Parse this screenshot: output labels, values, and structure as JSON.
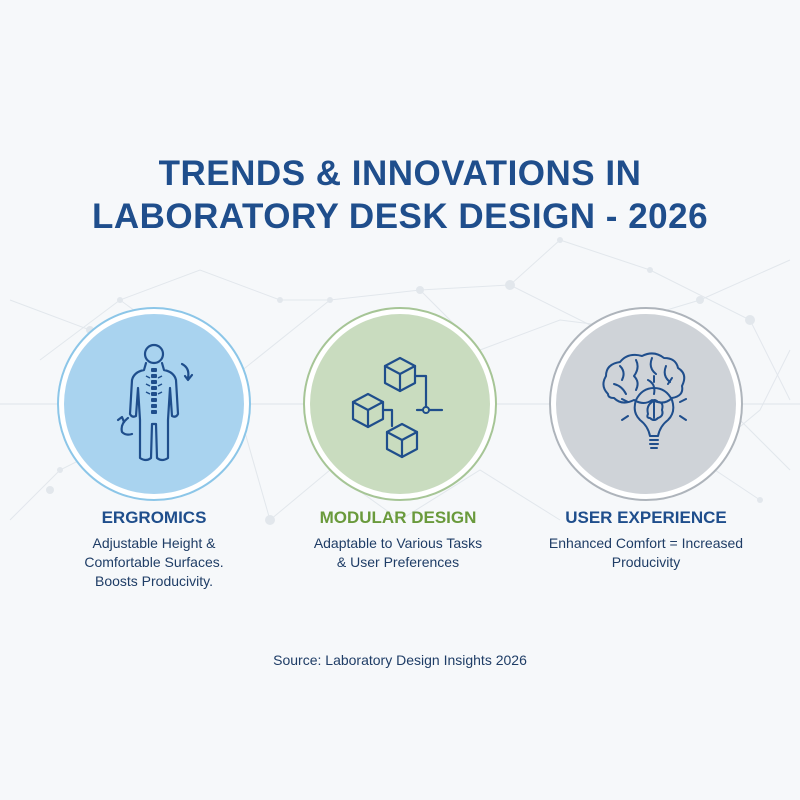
{
  "title": {
    "line1": "TRENDS & INNOVATIONS IN",
    "line2": "LABORATORY DESK DESIGN - 2026"
  },
  "items": [
    {
      "heading": "ERGROMICS",
      "line1": "Adjustable Height &",
      "line2": "Comfortable Surfaces.",
      "line3": "Boosts Producivity.",
      "icon": "human-body-icon",
      "fill": "#a9d3ef",
      "ring": "#7fc0e6",
      "heading_color": "#1f4e8c"
    },
    {
      "heading": "MODULAR DESIGN",
      "line1": "Adaptable to Various Tasks",
      "line2": "& User Preferences",
      "icon": "modular-cubes-icon",
      "fill": "#c9dcbf",
      "ring": "#a6c596",
      "heading_color": "#6a9a3c"
    },
    {
      "heading": "USER EXPERIENCE",
      "line1": "Enhanced Comfort = Increased",
      "line2": "Producivity",
      "icon": "brain-lightbulb-icon",
      "fill": "#cfd3d8",
      "ring": "#aeb4bb",
      "heading_color": "#1f4e8c"
    }
  ],
  "source": "Source: Laboratory Design Insights 2026"
}
